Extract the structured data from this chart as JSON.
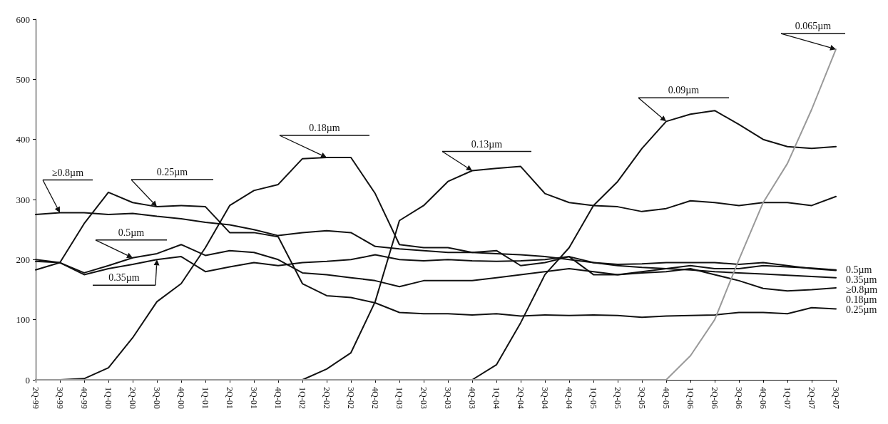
{
  "chart_data": {
    "type": "line",
    "categories": [
      "2Q-99",
      "3Q-99",
      "4Q-99",
      "1Q-00",
      "2Q-00",
      "3Q-00",
      "4Q-00",
      "1Q-01",
      "2Q-01",
      "3Q-01",
      "4Q-01",
      "1Q-02",
      "2Q-02",
      "3Q-02",
      "4Q-02",
      "1Q-03",
      "2Q-03",
      "3Q-03",
      "4Q-03",
      "1Q-04",
      "2Q-04",
      "3Q-04",
      "4Q-04",
      "1Q-05",
      "2Q-05",
      "3Q-05",
      "4Q-05",
      "1Q-06",
      "2Q-06",
      "3Q-06",
      "4Q-06",
      "1Q-07",
      "2Q-07",
      "3Q-07"
    ],
    "series": [
      {
        "name": "≥0.8µm",
        "color": "#111111",
        "values": [
          275,
          278,
          278,
          275,
          277,
          272,
          268,
          262,
          258,
          250,
          240,
          245,
          248,
          245,
          222,
          218,
          215,
          212,
          212,
          210,
          208,
          205,
          200,
          195,
          190,
          187,
          185,
          183,
          180,
          178,
          176,
          174,
          172,
          170
        ]
      },
      {
        "name": "0.5µm",
        "color": "#111111",
        "values": [
          197,
          195,
          178,
          190,
          203,
          210,
          225,
          207,
          215,
          212,
          200,
          178,
          175,
          170,
          165,
          155,
          165,
          165,
          165,
          170,
          175,
          180,
          185,
          180,
          175,
          180,
          185,
          190,
          185,
          185,
          190,
          188,
          186,
          183
        ]
      },
      {
        "name": "0.35µm",
        "color": "#111111",
        "values": [
          183,
          195,
          175,
          185,
          192,
          200,
          205,
          180,
          188,
          195,
          190,
          195,
          197,
          200,
          208,
          200,
          198,
          200,
          198,
          197,
          198,
          200,
          205,
          195,
          192,
          193,
          195,
          195,
          195,
          192,
          195,
          190,
          185,
          182
        ]
      },
      {
        "name": "0.25µm",
        "color": "#111111",
        "values": [
          200,
          195,
          260,
          312,
          295,
          288,
          290,
          288,
          245,
          245,
          238,
          160,
          140,
          137,
          128,
          112,
          110,
          110,
          108,
          110,
          106,
          108,
          107,
          108,
          107,
          104,
          106,
          107,
          108,
          112,
          112,
          110,
          120,
          118
        ]
      },
      {
        "name": "0.18µm",
        "color": "#111111",
        "values": [
          0,
          0,
          2,
          20,
          70,
          130,
          160,
          220,
          290,
          315,
          325,
          368,
          370,
          370,
          310,
          225,
          220,
          220,
          212,
          215,
          190,
          195,
          205,
          175,
          175,
          178,
          180,
          185,
          175,
          165,
          152,
          148,
          150,
          153
        ]
      },
      {
        "color": "#111111",
        "values": [
          0,
          0,
          0,
          0,
          0,
          0,
          0,
          0,
          0,
          0,
          0,
          0,
          18,
          45,
          130,
          265,
          290,
          330,
          348,
          352,
          355,
          310,
          295,
          290,
          288,
          280,
          285,
          298,
          295,
          290,
          295,
          295,
          290,
          305
        ]
      },
      {
        "color": "#111111",
        "values": [
          0,
          0,
          0,
          0,
          0,
          0,
          0,
          0,
          0,
          0,
          0,
          0,
          0,
          0,
          0,
          0,
          0,
          0,
          0,
          25,
          95,
          175,
          220,
          290,
          330,
          385,
          430,
          442,
          448,
          425,
          400,
          388,
          385,
          388
        ]
      },
      {
        "color": "#999999",
        "values": [
          0,
          0,
          0,
          0,
          0,
          0,
          0,
          0,
          0,
          0,
          0,
          0,
          0,
          0,
          0,
          0,
          0,
          0,
          0,
          0,
          0,
          0,
          0,
          0,
          0,
          0,
          0,
          40,
          100,
          200,
          295,
          360,
          450,
          550
        ]
      }
    ],
    "ylim": [
      0,
      600
    ],
    "yticks": [
      0,
      100,
      200,
      300,
      400,
      500,
      600
    ],
    "annotations": [
      {
        "text": "≥0.8µm",
        "x": "3Q-99",
        "y": 278
      },
      {
        "text": "0.25µm",
        "x": "3Q-00",
        "y": 288
      },
      {
        "text": "0.5µm",
        "x": "2Q-00",
        "y": 203
      },
      {
        "text": "0.35µm",
        "x": "3Q-00",
        "y": 200
      },
      {
        "text": "0.18µm",
        "x": "2Q-02",
        "y": 370
      },
      {
        "text": "0.13µm",
        "x": "4Q-03",
        "y": 348
      },
      {
        "text": "0.09µm",
        "x": "4Q-05",
        "y": 430
      },
      {
        "text": "0.065µm",
        "x": "3Q-07",
        "y": 550
      }
    ]
  }
}
